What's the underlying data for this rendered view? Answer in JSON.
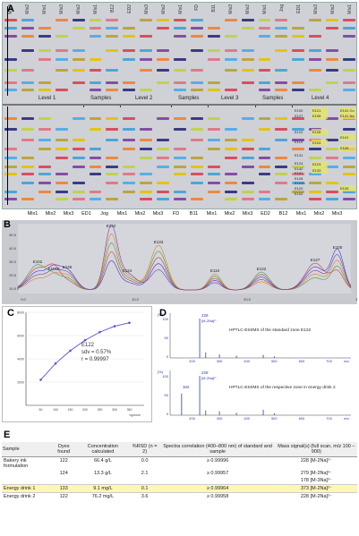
{
  "panels": {
    "a": "A",
    "b": "B",
    "c": "C",
    "d": "D",
    "e": "E"
  },
  "plate_a": {
    "top_lanes": [
      "Mix3",
      "Mix2",
      "Mix1",
      "Mix3",
      "Mix2",
      "Mix1",
      "B12",
      "ED2",
      "Mix3",
      "Mix2",
      "Mix1",
      "FD",
      "B11",
      "Mix3",
      "Mix2",
      "Mix1",
      "Jog",
      "ED1",
      "Mix3",
      "Mix2",
      "Mix1"
    ],
    "group_labels": [
      "Level 1",
      "Samples",
      "Level 2",
      "Samples",
      "Level 3",
      "Samples",
      "Level 4"
    ],
    "bottom_lanes": [
      "Mix1",
      "Mix2",
      "Mix3",
      "ED1",
      "Jog",
      "Mix1",
      "Mix2",
      "Mix3",
      "FD",
      "B11",
      "Mix1",
      "Mix2",
      "Mix3",
      "ED2",
      "B12",
      "Mix1",
      "Mix2",
      "Mix3"
    ],
    "zone_labels_left": [
      "E100",
      "E127",
      "E122",
      "E110",
      "E131",
      "E124",
      "E142",
      "E151",
      "E126",
      "E101b",
      "E120",
      "E102"
    ],
    "zone_labels_right": [
      "E121",
      "E105",
      "E126",
      "E104",
      "E123",
      "E133",
      "E101",
      "E141 Cu",
      "E141 Na",
      "E129",
      "E120"
    ]
  },
  "chart_b": {
    "peak_labels": [
      "E142",
      "E133",
      "E102",
      "E101b",
      "E126",
      "E124",
      "E110",
      "E122",
      "E127",
      "E100"
    ],
    "y_ticks": [
      "50.0",
      "40.0",
      "30.0",
      "20.0",
      "10.0"
    ],
    "x_ticks": [
      "0.0",
      "10.0",
      "20.0",
      "30.0"
    ]
  },
  "chart_data": [
    {
      "type": "line",
      "title": "",
      "annotation_name": "E122",
      "annotation_sdv": "sdv = 0.57%",
      "annotation_r": "r = 0.99997",
      "x": [
        50,
        100,
        150,
        200,
        250,
        300,
        350
      ],
      "y": [
        2200,
        3600,
        4700,
        5600,
        6300,
        6800,
        7100
      ],
      "xlim": [
        0,
        400
      ],
      "ylim": [
        0,
        8000
      ],
      "x_tick_labels": [
        "50",
        "100",
        "150",
        "200",
        "250",
        "300",
        "350"
      ],
      "y_tick_labels": [
        "8000",
        "6000",
        "4000",
        "2000"
      ],
      "xlabel": "ng/zone"
    },
    {
      "type": "bar",
      "ylabel": "[%]",
      "top_caption": "HPTLC-ESI/MS of the standard zone E122",
      "top_peak_label": "228",
      "top_peak_sub": "[M-2Na]",
      "top_y_ticks": [
        "100",
        "50",
        "0"
      ],
      "top_peaks": [
        [
          228,
          100
        ],
        [
          250,
          14
        ],
        [
          300,
          9
        ],
        [
          362,
          6
        ],
        [
          460,
          8
        ],
        [
          500,
          4
        ]
      ],
      "bottom_caption": "HPTLC-ESI/MS of the respective zone in energy drink 2",
      "bottom_peak_label": "228",
      "bottom_peak_sub": "[M-2Na]",
      "bottom_peak2_label": "162",
      "bottom_y_ticks": [
        "100",
        "50",
        "0"
      ],
      "bottom_peaks": [
        [
          162,
          55
        ],
        [
          228,
          100
        ],
        [
          250,
          12
        ],
        [
          300,
          10
        ],
        [
          362,
          6
        ],
        [
          460,
          14
        ],
        [
          500,
          5
        ]
      ],
      "x_ticks": [
        "200",
        "300",
        "400",
        "500",
        "600",
        "700"
      ],
      "xlim": [
        120,
        780
      ],
      "xlabel": "m/z"
    }
  ],
  "table_e": {
    "headers": [
      "Sample",
      "Dyes found",
      "Concentration calculated",
      "%RSD (n = 2)",
      "Spectra correlation (400–800 nm) of standard and sample",
      "Mass signal(s) (full scan, m/z 100 – 900)"
    ],
    "rows": [
      [
        "Bakery ink formulation",
        "122",
        "66.4 g/L",
        "0.0",
        "≥ 0.99996",
        "228 [M-2Na]²⁻"
      ],
      [
        "",
        "124",
        "13.3 g/L",
        "2.1",
        "≥ 0.99957",
        "279 [M-2Na]²⁻"
      ],
      [
        "",
        "",
        "",
        "",
        "",
        "178 [M-3Na]³⁻"
      ],
      [
        "Energy drink 1",
        "133",
        "9.1 mg/L",
        "0.1",
        "≥ 0.99964",
        "373 [M-2Na]²⁻"
      ],
      [
        "Energy drink 2",
        "122",
        "76.2 mg/L",
        "3.6",
        "≥ 0.99958",
        "228 [M-2Na]²⁻"
      ]
    ]
  }
}
